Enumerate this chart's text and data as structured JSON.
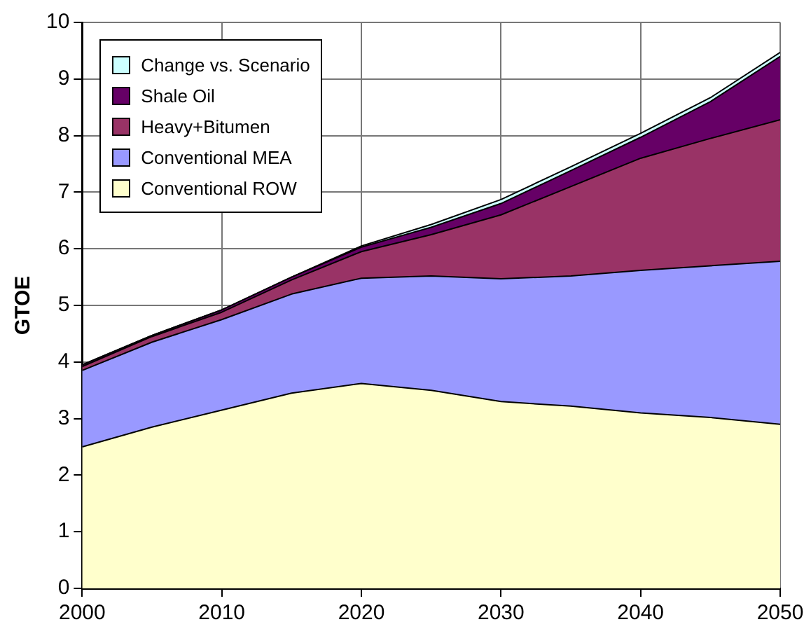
{
  "chart_data": {
    "type": "area",
    "stacked": true,
    "ylabel": "GTOE",
    "x": [
      2000,
      2005,
      2010,
      2015,
      2020,
      2025,
      2030,
      2035,
      2040,
      2045,
      2050
    ],
    "series": [
      {
        "name": "Conventional ROW",
        "color": "#ffffcc",
        "values": [
          2.5,
          2.85,
          3.15,
          3.45,
          3.62,
          3.5,
          3.3,
          3.22,
          3.1,
          3.02,
          2.9
        ]
      },
      {
        "name": "Conventional MEA",
        "color": "#9999ff",
        "values": [
          1.35,
          1.5,
          1.6,
          1.75,
          1.86,
          2.02,
          2.17,
          2.3,
          2.52,
          2.68,
          2.88
        ]
      },
      {
        "name": "Heavy+Bitumen",
        "color": "#993366",
        "values": [
          0.07,
          0.1,
          0.13,
          0.25,
          0.47,
          0.73,
          1.13,
          1.58,
          1.98,
          2.25,
          2.5
        ]
      },
      {
        "name": "Shale Oil",
        "color": "#660066",
        "values": [
          0.03,
          0.02,
          0.04,
          0.05,
          0.08,
          0.13,
          0.2,
          0.28,
          0.37,
          0.65,
          1.12
        ]
      },
      {
        "name": "Change vs. Scenario",
        "color": "#ccffff",
        "values": [
          0,
          0,
          0,
          0,
          0.02,
          0.05,
          0.07,
          0.07,
          0.07,
          0.07,
          0.07
        ]
      }
    ],
    "xlim": [
      2000,
      2050
    ],
    "xticks": [
      2000,
      2010,
      2020,
      2030,
      2040,
      2050
    ],
    "ylim": [
      0,
      10
    ],
    "yticks": [
      0,
      1,
      2,
      3,
      4,
      5,
      6,
      7,
      8,
      9,
      10
    ],
    "grid": true,
    "legend": "top left"
  }
}
